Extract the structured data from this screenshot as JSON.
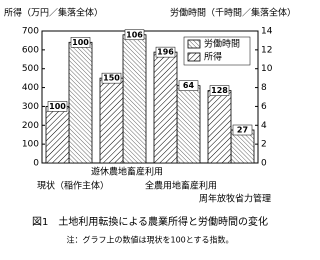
{
  "chart_data": {
    "type": "bar",
    "title": "図1　土地利用転換による農業所得と労働時間の変化",
    "note": "注：グラフ上の数値は現状を100とする指数。",
    "ylabel": "所得（万円／集落全体）",
    "y2label": "労働時間（千時間／集落全体）",
    "categories": [
      "現状（稲作主体）",
      "遊休農地畜産利用",
      "全農用地畜産利用",
      "周年放牧省力管理"
    ],
    "series": [
      {
        "name": "労働時間",
        "color": "#000000",
        "axis": "y2",
        "values": [
          12.8,
          13.6,
          8.2,
          3.5
        ],
        "index": [
          100,
          106,
          64,
          27
        ]
      },
      {
        "name": "所得",
        "color": "#000000",
        "values": [
          300,
          450,
          588,
          384
        ],
        "index": [
          100,
          150,
          196,
          128
        ]
      }
    ],
    "ylim": [
      0,
      700
    ],
    "yticks": [
      0,
      100,
      200,
      300,
      400,
      500,
      600,
      700
    ],
    "y2lim": [
      0,
      14
    ],
    "y2ticks": [
      0,
      2,
      4,
      6,
      8,
      10,
      12,
      14
    ],
    "legend": "upper right"
  }
}
